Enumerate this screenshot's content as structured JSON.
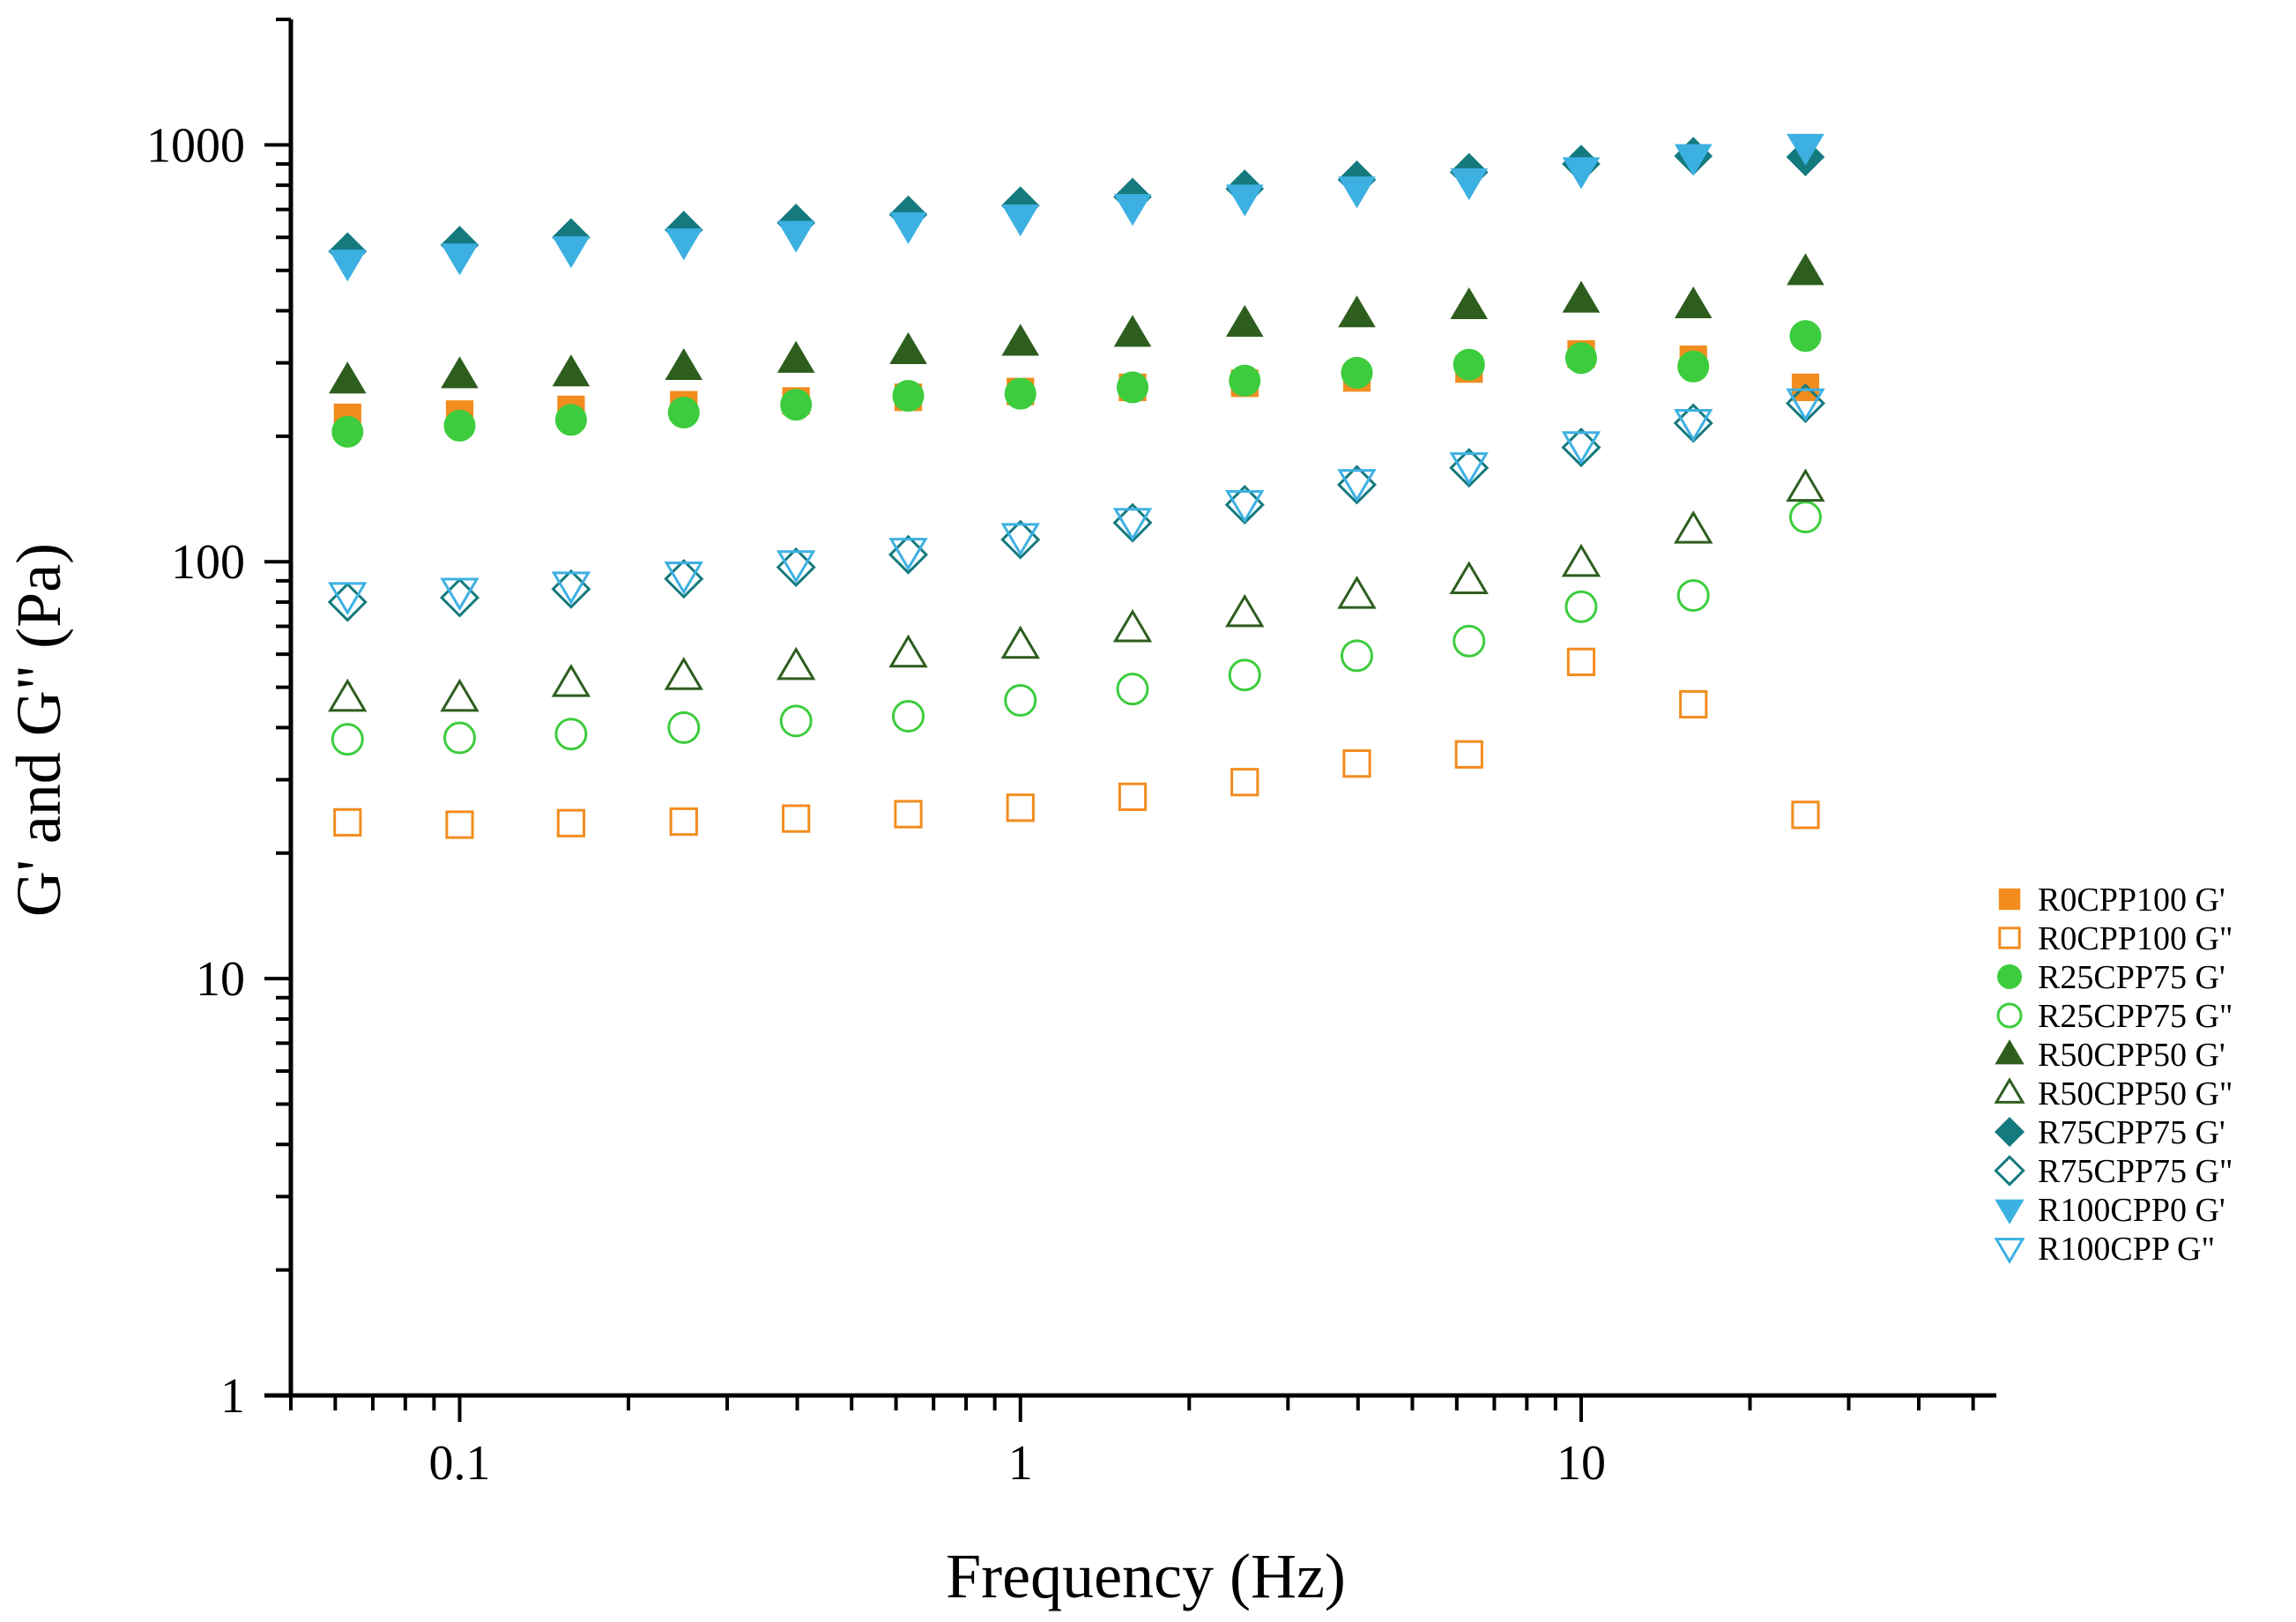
{
  "chart_data": {
    "type": "scatter",
    "title": "",
    "xlabel": "Frequency (Hz)",
    "ylabel": "G' and G\" (Pa)",
    "xscale": "log",
    "yscale": "log",
    "xlim": [
      0.05,
      55
    ],
    "ylim": [
      1,
      2000
    ],
    "x_ticks": [
      {
        "value": 0.1,
        "label": "0.1"
      },
      {
        "value": 1,
        "label": "1"
      },
      {
        "value": 10,
        "label": "10"
      }
    ],
    "y_ticks": [
      {
        "value": 1,
        "label": "1"
      },
      {
        "value": 10,
        "label": "10"
      },
      {
        "value": 100,
        "label": "100"
      },
      {
        "value": 1000,
        "label": "1000"
      }
    ],
    "legend_position": "right",
    "x": [
      0.0631,
      0.1,
      0.158,
      0.251,
      0.398,
      0.631,
      1,
      1.585,
      2.512,
      3.981,
      6.31,
      10,
      15.85,
      25.12
    ],
    "series": [
      {
        "name": "R0CPP100 G'",
        "marker": "square",
        "filled": true,
        "color": "#F28D1E",
        "values": [
          222,
          226,
          232,
          238,
          243,
          248,
          256,
          262,
          268,
          276,
          290,
          315,
          306,
          262
        ]
      },
      {
        "name": "R0CPP100 G\"",
        "marker": "square",
        "filled": false,
        "color": "#F28D1E",
        "values": [
          23.7,
          23.4,
          23.6,
          23.8,
          24.2,
          24.8,
          25.7,
          27.3,
          29.6,
          32.8,
          34.5,
          57.5,
          45.5,
          24.7
        ]
      },
      {
        "name": "R25CPP75 G'",
        "marker": "circle",
        "filled": true,
        "color": "#3DCC3D",
        "values": [
          205,
          212,
          219,
          228,
          238,
          250,
          253,
          262,
          272,
          284,
          297,
          308,
          294,
          348
        ]
      },
      {
        "name": "R25CPP75 G\"",
        "marker": "circle",
        "filled": false,
        "color": "#3DCC3D",
        "values": [
          37.5,
          37.8,
          38.6,
          40,
          41.5,
          42.6,
          46.5,
          49.5,
          53.5,
          59.5,
          64.5,
          78,
          83,
          128
        ]
      },
      {
        "name": "R50CPP50 G'",
        "marker": "triangle-up",
        "filled": true,
        "color": "#2E5E1E",
        "values": [
          272,
          280,
          283,
          293,
          305,
          320,
          335,
          352,
          372,
          392,
          410,
          425,
          412,
          495
        ]
      },
      {
        "name": "R50CPP50 G\"",
        "marker": "triangle-up",
        "filled": false,
        "color": "#2E5E1E",
        "values": [
          47,
          47,
          51,
          53,
          56,
          60,
          63,
          69,
          75,
          83,
          90,
          99,
          119,
          150
        ]
      },
      {
        "name": "R75CPP75 G'",
        "marker": "diamond",
        "filled": true,
        "color": "#157A7E",
        "values": [
          555,
          575,
          600,
          625,
          650,
          680,
          715,
          750,
          785,
          825,
          860,
          900,
          940,
          935
        ]
      },
      {
        "name": "R75CPP75 G\"",
        "marker": "diamond",
        "filled": false,
        "color": "#157A7E",
        "values": [
          80,
          82,
          86,
          91,
          97,
          104,
          113,
          124,
          137,
          153,
          168,
          188,
          215,
          240
        ]
      },
      {
        "name": "R100CPP0 G'",
        "marker": "triangle-down",
        "filled": true,
        "color": "#3DB0E2",
        "values": [
          522,
          540,
          562,
          587,
          612,
          642,
          670,
          710,
          748,
          782,
          818,
          870,
          935,
          990
        ]
      },
      {
        "name": "R100CPP G\"",
        "marker": "triangle-down",
        "filled": false,
        "color": "#3DB0E2",
        "values": [
          83,
          85,
          88,
          93,
          99,
          106,
          115,
          125,
          138,
          155,
          170,
          191,
          216,
          242
        ]
      }
    ]
  }
}
